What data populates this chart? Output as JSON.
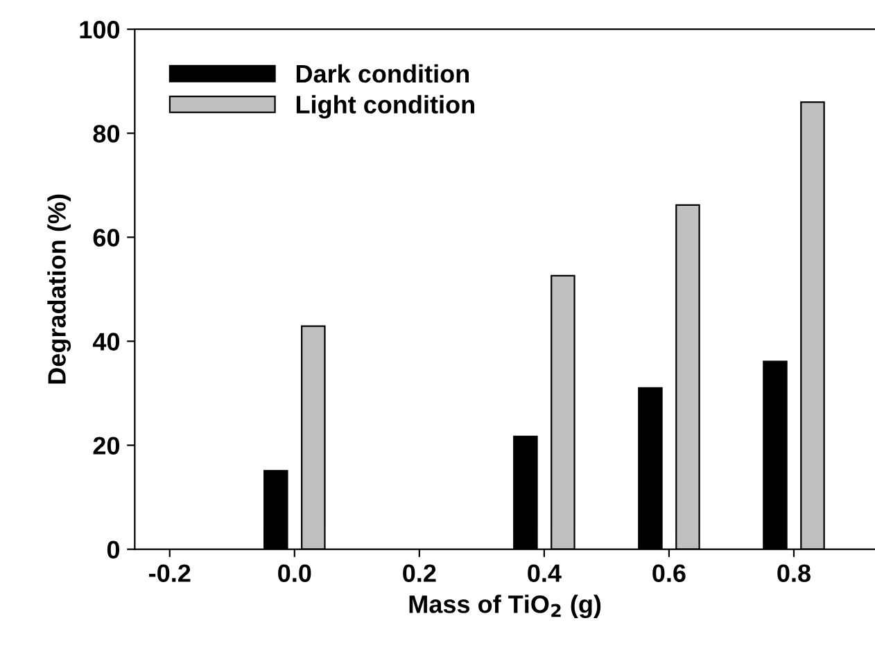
{
  "chart_data": {
    "type": "bar",
    "xlabel": "Mass of TiO$_{2}$ (g)",
    "ylabel": "Degradation (%)",
    "x": [
      0.0,
      0.4,
      0.6,
      0.8
    ],
    "series": [
      {
        "name": "Dark condition",
        "color": "#000000",
        "values": [
          15.1,
          21.7,
          31.0,
          36.1
        ]
      },
      {
        "name": "Light condition",
        "color": "#c0c0c0",
        "values": [
          42.9,
          52.6,
          66.2,
          86.0
        ]
      }
    ],
    "xlim": [
      -0.256,
      0.93
    ],
    "xticks": [
      {
        "value": -0.2,
        "label": "-0.2"
      },
      {
        "value": 0.0,
        "label": "0.0"
      },
      0.2,
      0.4,
      0.6,
      0.8
    ],
    "ylim": [
      0,
      100
    ],
    "yticks": [
      0,
      20,
      40,
      60,
      80,
      100
    ],
    "grid": false,
    "legend": "top left"
  }
}
